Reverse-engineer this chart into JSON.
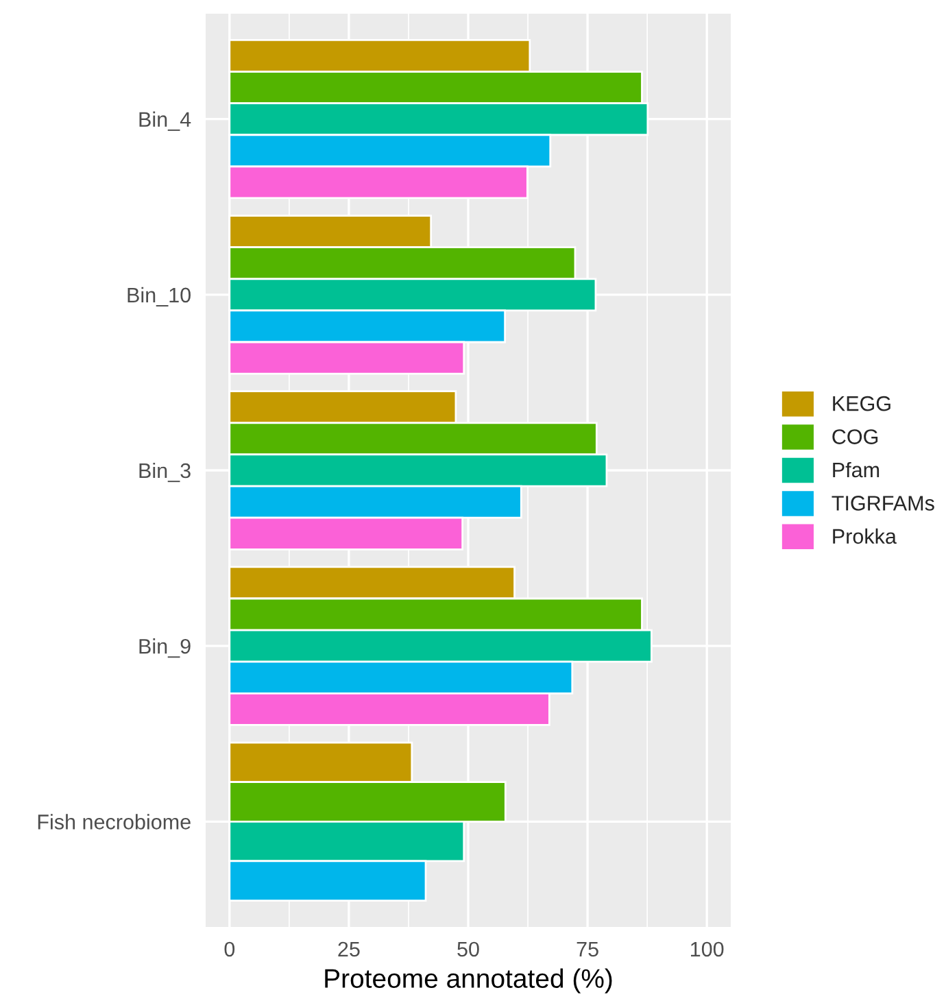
{
  "chart_data": {
    "type": "bar",
    "orientation": "horizontal",
    "xlabel": "Proteome annotated (%)",
    "categories": [
      "Bin_4",
      "Bin_10",
      "Bin_3",
      "Bin_9",
      "Fish necrobiome"
    ],
    "series": [
      {
        "name": "KEGG",
        "color": "#c49a00",
        "values": [
          62.9,
          42.2,
          47.4,
          59.7,
          38.2
        ]
      },
      {
        "name": "COG",
        "color": "#53b400",
        "values": [
          86.4,
          72.4,
          76.9,
          86.4,
          57.8
        ]
      },
      {
        "name": "Pfam",
        "color": "#00c094",
        "values": [
          87.6,
          76.7,
          79.0,
          88.4,
          49.1
        ]
      },
      {
        "name": "TIGRFAMs",
        "color": "#00b6eb",
        "values": [
          67.2,
          57.7,
          61.1,
          71.8,
          41.1
        ]
      },
      {
        "name": "Prokka",
        "color": "#fb61d7",
        "values": [
          62.4,
          49.1,
          48.8,
          67.0,
          null
        ]
      }
    ],
    "xlim": [
      -5,
      105
    ],
    "xticks": [
      0,
      25,
      50,
      75,
      100
    ],
    "grid": true,
    "legend": "right"
  }
}
